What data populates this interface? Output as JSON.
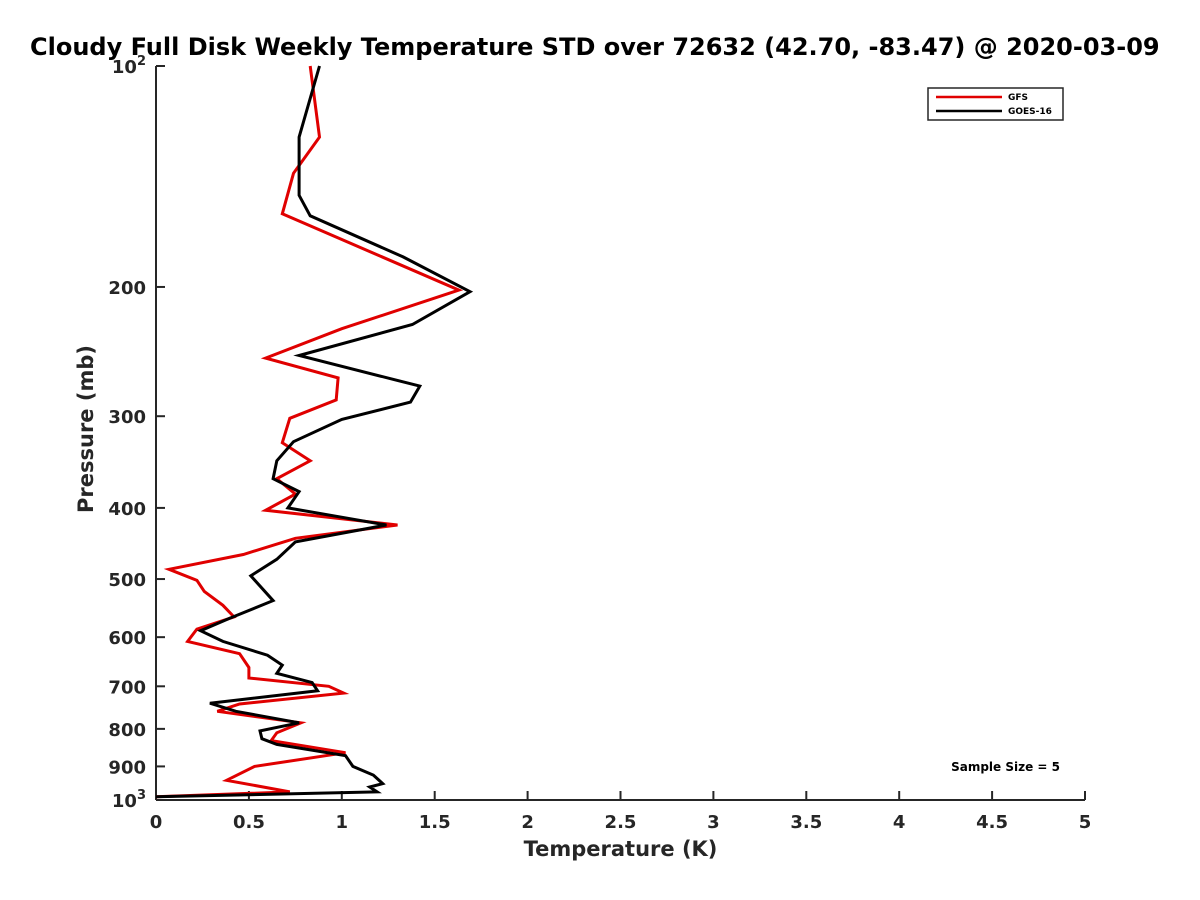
{
  "chart_data": {
    "type": "line",
    "title": "Cloudy Full Disk Weekly Temperature STD over 72632 (42.70, -83.47) @ 2020-03-09",
    "xlabel": "Temperature (K)",
    "ylabel": "Pressure (mb)",
    "xlim": [
      0,
      5
    ],
    "ylim": [
      100,
      1000
    ],
    "y_scale": "log",
    "y_reversed": true,
    "grid": false,
    "legend_position": "top-right",
    "x_ticks": [
      "0",
      "0.5",
      "1",
      "1.5",
      "2",
      "2.5",
      "3",
      "3.5",
      "4",
      "4.5",
      "5"
    ],
    "y_ticks": [
      {
        "value": 100,
        "base": "10",
        "exp": "2"
      },
      {
        "value": 200,
        "label": "200"
      },
      {
        "value": 300,
        "label": "300"
      },
      {
        "value": 400,
        "label": "400"
      },
      {
        "value": 500,
        "label": "500"
      },
      {
        "value": 600,
        "label": "600"
      },
      {
        "value": 700,
        "label": "700"
      },
      {
        "value": 800,
        "label": "800"
      },
      {
        "value": 900,
        "label": "900"
      },
      {
        "value": 1000,
        "base": "10",
        "exp": "3"
      }
    ],
    "annotation": "Sample Size = 5",
    "series": [
      {
        "name": "GFS",
        "color": "#e00000",
        "points": [
          [
            0.83,
            100
          ],
          [
            0.88,
            125
          ],
          [
            0.74,
            140
          ],
          [
            0.68,
            159
          ],
          [
            1.63,
            202
          ],
          [
            1.0,
            228
          ],
          [
            0.59,
            250
          ],
          [
            0.98,
            266
          ],
          [
            0.97,
            285
          ],
          [
            0.72,
            302
          ],
          [
            0.68,
            326
          ],
          [
            0.83,
            345
          ],
          [
            0.65,
            365
          ],
          [
            0.75,
            383
          ],
          [
            0.59,
            403
          ],
          [
            1.3,
            422
          ],
          [
            0.75,
            440
          ],
          [
            0.47,
            463
          ],
          [
            0.07,
            485
          ],
          [
            0.22,
            502
          ],
          [
            0.26,
            520
          ],
          [
            0.36,
            543
          ],
          [
            0.42,
            563
          ],
          [
            0.22,
            585
          ],
          [
            0.17,
            608
          ],
          [
            0.45,
            632
          ],
          [
            0.5,
            660
          ],
          [
            0.5,
            682
          ],
          [
            0.93,
            700
          ],
          [
            1.01,
            715
          ],
          [
            0.45,
            740
          ],
          [
            0.33,
            757
          ],
          [
            0.78,
            785
          ],
          [
            0.65,
            810
          ],
          [
            0.62,
            830
          ],
          [
            1.02,
            862
          ],
          [
            0.53,
            900
          ],
          [
            0.38,
            940
          ],
          [
            0.72,
            975
          ],
          [
            0.0,
            990
          ]
        ]
      },
      {
        "name": "GOES-16",
        "color": "#000000",
        "points": [
          [
            0.88,
            100
          ],
          [
            0.77,
            125
          ],
          [
            0.77,
            150
          ],
          [
            0.83,
            160
          ],
          [
            1.33,
            182
          ],
          [
            1.69,
            203
          ],
          [
            1.38,
            225
          ],
          [
            0.77,
            248
          ],
          [
            1.42,
            273
          ],
          [
            1.37,
            287
          ],
          [
            1.0,
            303
          ],
          [
            0.74,
            325
          ],
          [
            0.65,
            345
          ],
          [
            0.63,
            365
          ],
          [
            0.77,
            380
          ],
          [
            0.71,
            400
          ],
          [
            1.24,
            422
          ],
          [
            0.75,
            445
          ],
          [
            0.65,
            470
          ],
          [
            0.51,
            495
          ],
          [
            0.63,
            535
          ],
          [
            0.4,
            565
          ],
          [
            0.24,
            588
          ],
          [
            0.36,
            608
          ],
          [
            0.6,
            635
          ],
          [
            0.68,
            655
          ],
          [
            0.65,
            672
          ],
          [
            0.84,
            692
          ],
          [
            0.87,
            710
          ],
          [
            0.29,
            738
          ],
          [
            0.43,
            757
          ],
          [
            0.77,
            785
          ],
          [
            0.56,
            805
          ],
          [
            0.57,
            825
          ],
          [
            0.65,
            840
          ],
          [
            1.02,
            870
          ],
          [
            1.06,
            900
          ],
          [
            1.17,
            925
          ],
          [
            1.22,
            950
          ],
          [
            1.15,
            960
          ],
          [
            1.19,
            975
          ],
          [
            0.0,
            990
          ]
        ]
      }
    ]
  }
}
